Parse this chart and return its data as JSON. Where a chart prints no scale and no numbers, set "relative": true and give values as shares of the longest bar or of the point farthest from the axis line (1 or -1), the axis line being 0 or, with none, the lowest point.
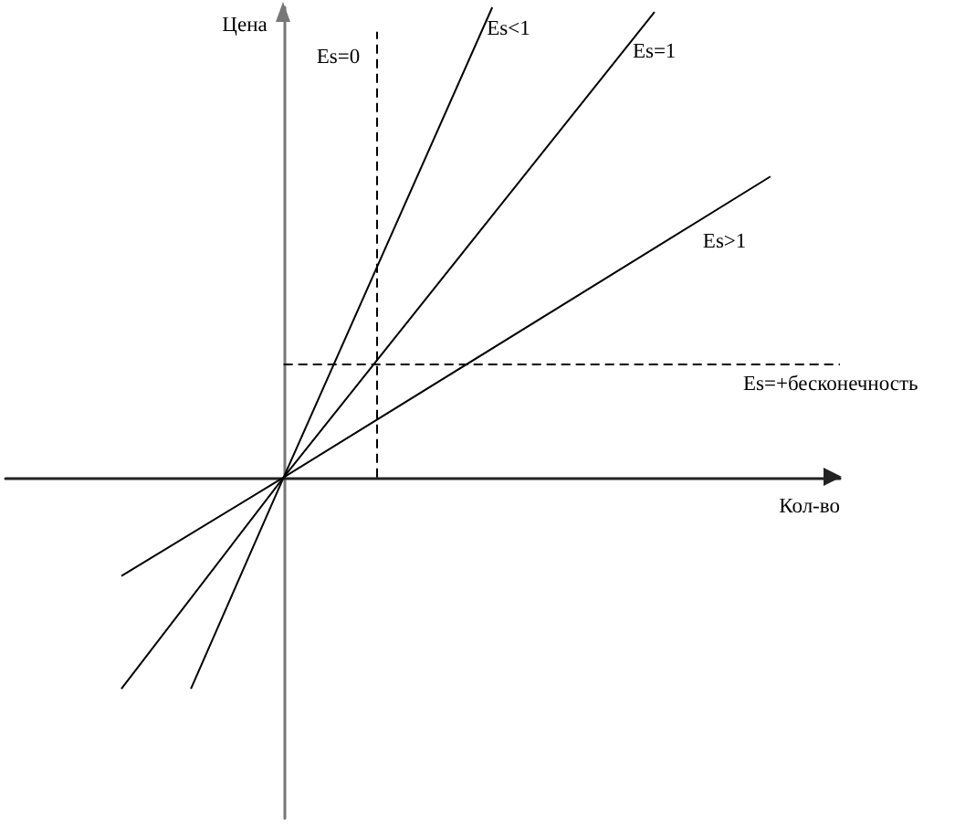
{
  "chart_data": {
    "type": "line",
    "relative": true,
    "xlabel": "Кол-во",
    "ylabel": "Цена",
    "marker": "none",
    "categories": [
      null,
      null,
      null,
      null,
      null,
      null,
      null,
      null,
      null,
      null,
      null,
      null,
      null,
      null,
      null,
      null,
      null,
      null,
      null,
      null,
      null,
      null,
      null,
      null,
      null,
      null,
      null,
      null,
      null,
      null,
      null,
      null,
      null,
      null,
      null,
      null,
      null
    ],
    "series": [
      {
        "name": "Es<1",
        "color": "#000000",
        "line_style": "solid",
        "values": [
          null,
          null,
          null,
          null,
          null,
          null,
          null,
          null,
          -0.45,
          null,
          null,
          null,
          0,
          null,
          null,
          null,
          null,
          null,
          null,
          null,
          null,
          1,
          null,
          null,
          null,
          null,
          null,
          null,
          null,
          null,
          null,
          null,
          null,
          null,
          null,
          null,
          null
        ]
      },
      {
        "name": "Es=1",
        "color": "#000000",
        "line_style": "solid",
        "values": [
          null,
          null,
          null,
          null,
          null,
          -0.45,
          null,
          null,
          null,
          null,
          null,
          null,
          0,
          null,
          null,
          null,
          null,
          null,
          null,
          null,
          null,
          null,
          null,
          null,
          null,
          null,
          null,
          null,
          0.99,
          null,
          null,
          null,
          null,
          null,
          null,
          null,
          null
        ]
      },
      {
        "name": "Es>1",
        "color": "#000000",
        "line_style": "solid",
        "values": [
          null,
          null,
          null,
          null,
          null,
          -0.21,
          null,
          null,
          null,
          null,
          null,
          null,
          0,
          null,
          null,
          null,
          null,
          null,
          null,
          null,
          null,
          null,
          null,
          null,
          null,
          null,
          null,
          null,
          null,
          null,
          null,
          null,
          null,
          0.64,
          null,
          null,
          null
        ]
      },
      {
        "name": "Es=+бесконечность",
        "color": "#000000",
        "line_style": "dashed",
        "values": [
          null,
          null,
          null,
          null,
          null,
          null,
          null,
          null,
          null,
          null,
          null,
          null,
          0.24,
          null,
          null,
          null,
          null,
          null,
          null,
          null,
          null,
          null,
          null,
          null,
          null,
          null,
          null,
          null,
          null,
          null,
          null,
          null,
          null,
          null,
          null,
          null,
          0.24
        ]
      }
    ],
    "annotations": [
      "Es=0"
    ]
  }
}
